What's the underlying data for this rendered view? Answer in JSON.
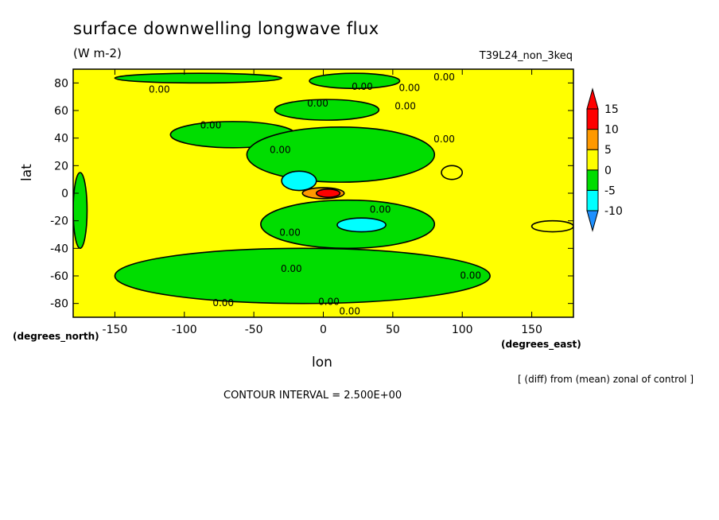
{
  "chart_data": {
    "type": "heatmap",
    "title": "surface downwelling longwave flux",
    "units": "(W m-2)",
    "run_name": "T39L24_non_3keq",
    "xlabel": "lon",
    "ylabel": "lat",
    "x_unit_label": "(degrees_east)",
    "y_unit_label": "(degrees_north)",
    "xlim": [
      -180,
      180
    ],
    "ylim": [
      -90,
      90
    ],
    "x_ticks": [
      -150,
      -100,
      -50,
      0,
      50,
      100,
      150
    ],
    "y_ticks": [
      80,
      60,
      40,
      20,
      0,
      -20,
      -40,
      -60,
      -80
    ],
    "colorbar": {
      "bounds": [
        -10,
        -5,
        0,
        5,
        10,
        15
      ],
      "colors": [
        "#1e90ff",
        "#00ffff",
        "#00dd00",
        "#ffff00",
        "#ff9900",
        "#ff0000"
      ],
      "labels": [
        "-10",
        "-5",
        "0",
        "5",
        "10",
        "15"
      ]
    },
    "note": "[ (diff) from (mean) zonal of control ]",
    "contour_interval": "CONTOUR INTERVAL = 2.500E+00",
    "contour_label": "0.00",
    "regions": [
      {
        "level": -2.5,
        "lon": [
          -150,
          -30
        ],
        "lat": [
          80,
          87
        ]
      },
      {
        "level": -2.5,
        "lon": [
          -10,
          55
        ],
        "lat": [
          76,
          87
        ]
      },
      {
        "level": -2.5,
        "lon": [
          -35,
          40
        ],
        "lat": [
          53,
          68
        ]
      },
      {
        "level": -2.5,
        "lon": [
          -110,
          -20
        ],
        "lat": [
          33,
          52
        ]
      },
      {
        "level": -2.5,
        "lon": [
          -55,
          80
        ],
        "lat": [
          8,
          48
        ]
      },
      {
        "level": -7.5,
        "lon": [
          -30,
          -5
        ],
        "lat": [
          2,
          16
        ]
      },
      {
        "level": -2.5,
        "lon": [
          -45,
          80
        ],
        "lat": [
          -40,
          -5
        ]
      },
      {
        "level": -7.5,
        "lon": [
          10,
          45
        ],
        "lat": [
          -28,
          -18
        ]
      },
      {
        "level": -2.5,
        "lon": [
          -150,
          120
        ],
        "lat": [
          -80,
          -40
        ]
      },
      {
        "level": -2.5,
        "lon": [
          -180,
          -170
        ],
        "lat": [
          -40,
          15
        ]
      },
      {
        "level": 7.5,
        "lon": [
          -15,
          15
        ],
        "lat": [
          -4,
          4
        ]
      },
      {
        "level": 12.5,
        "lon": [
          -5,
          12
        ],
        "lat": [
          -3,
          3
        ]
      },
      {
        "level": 2.5,
        "lon": [
          85,
          100
        ],
        "lat": [
          10,
          20
        ]
      },
      {
        "level": 2.5,
        "lon": [
          150,
          180
        ],
        "lat": [
          -28,
          -20
        ]
      }
    ],
    "contour_label_positions": [
      {
        "lon": -118,
        "lat": 73
      },
      {
        "lon": 28,
        "lat": 75
      },
      {
        "lon": 62,
        "lat": 74
      },
      {
        "lon": 87,
        "lat": 82
      },
      {
        "lon": -4,
        "lat": 63
      },
      {
        "lon": 59,
        "lat": 61
      },
      {
        "lon": -81,
        "lat": 47
      },
      {
        "lon": 87,
        "lat": 37
      },
      {
        "lon": -31,
        "lat": 29
      },
      {
        "lon": 41,
        "lat": -14
      },
      {
        "lon": -24,
        "lat": -31
      },
      {
        "lon": -23,
        "lat": -57
      },
      {
        "lon": 106,
        "lat": -62
      },
      {
        "lon": -72,
        "lat": -82
      },
      {
        "lon": 4,
        "lat": -81
      },
      {
        "lon": 19,
        "lat": -88
      }
    ]
  }
}
